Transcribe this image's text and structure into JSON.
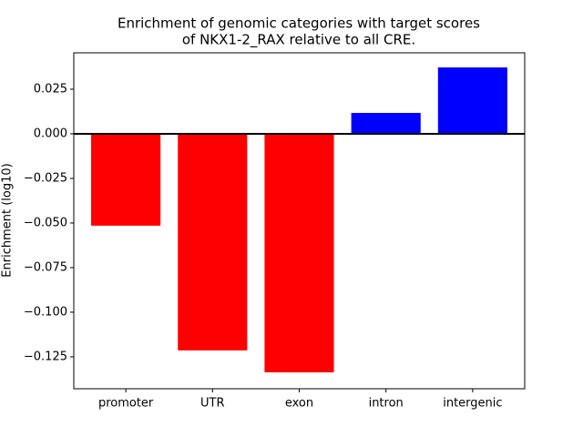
{
  "chart_data": {
    "type": "bar",
    "title": [
      "Enrichment of genomic categories with target scores",
      "of NKX1-2_RAX relative to all CRE."
    ],
    "ylabel": "Enrichment (log10)",
    "categories": [
      "promoter",
      "UTR",
      "exon",
      "intron",
      "intergenic"
    ],
    "values": [
      -0.0515,
      -0.1214,
      -0.1337,
      0.0117,
      0.0372
    ],
    "colors": [
      "#ff0000",
      "#ff0000",
      "#ff0000",
      "#0000ff",
      "#0000ff"
    ],
    "ylim": [
      -0.1429,
      0.0454
    ],
    "yticks": [
      {
        "value": -0.125,
        "label": "−0.125"
      },
      {
        "value": -0.1,
        "label": "−0.100"
      },
      {
        "value": -0.075,
        "label": "−0.075"
      },
      {
        "value": -0.05,
        "label": "−0.050"
      },
      {
        "value": -0.025,
        "label": "−0.025"
      },
      {
        "value": 0,
        "label": "0.000"
      },
      {
        "value": 0.025,
        "label": "0.025"
      }
    ],
    "grid": false
  }
}
